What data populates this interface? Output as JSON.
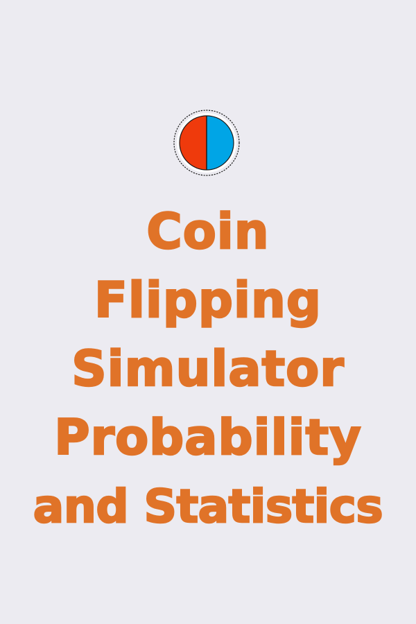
{
  "colors": {
    "background": "#ecebf1",
    "title_orange": "#e07328",
    "coin_left_red": "#ef3a0c",
    "coin_right_blue": "#00a5e6",
    "coin_outline": "#1a1a1a"
  },
  "logo": {
    "icon": "coin-icon"
  },
  "title": {
    "lines": [
      "Coin",
      "Flipping",
      "Simulator",
      "Probability",
      "and Statistics"
    ]
  }
}
